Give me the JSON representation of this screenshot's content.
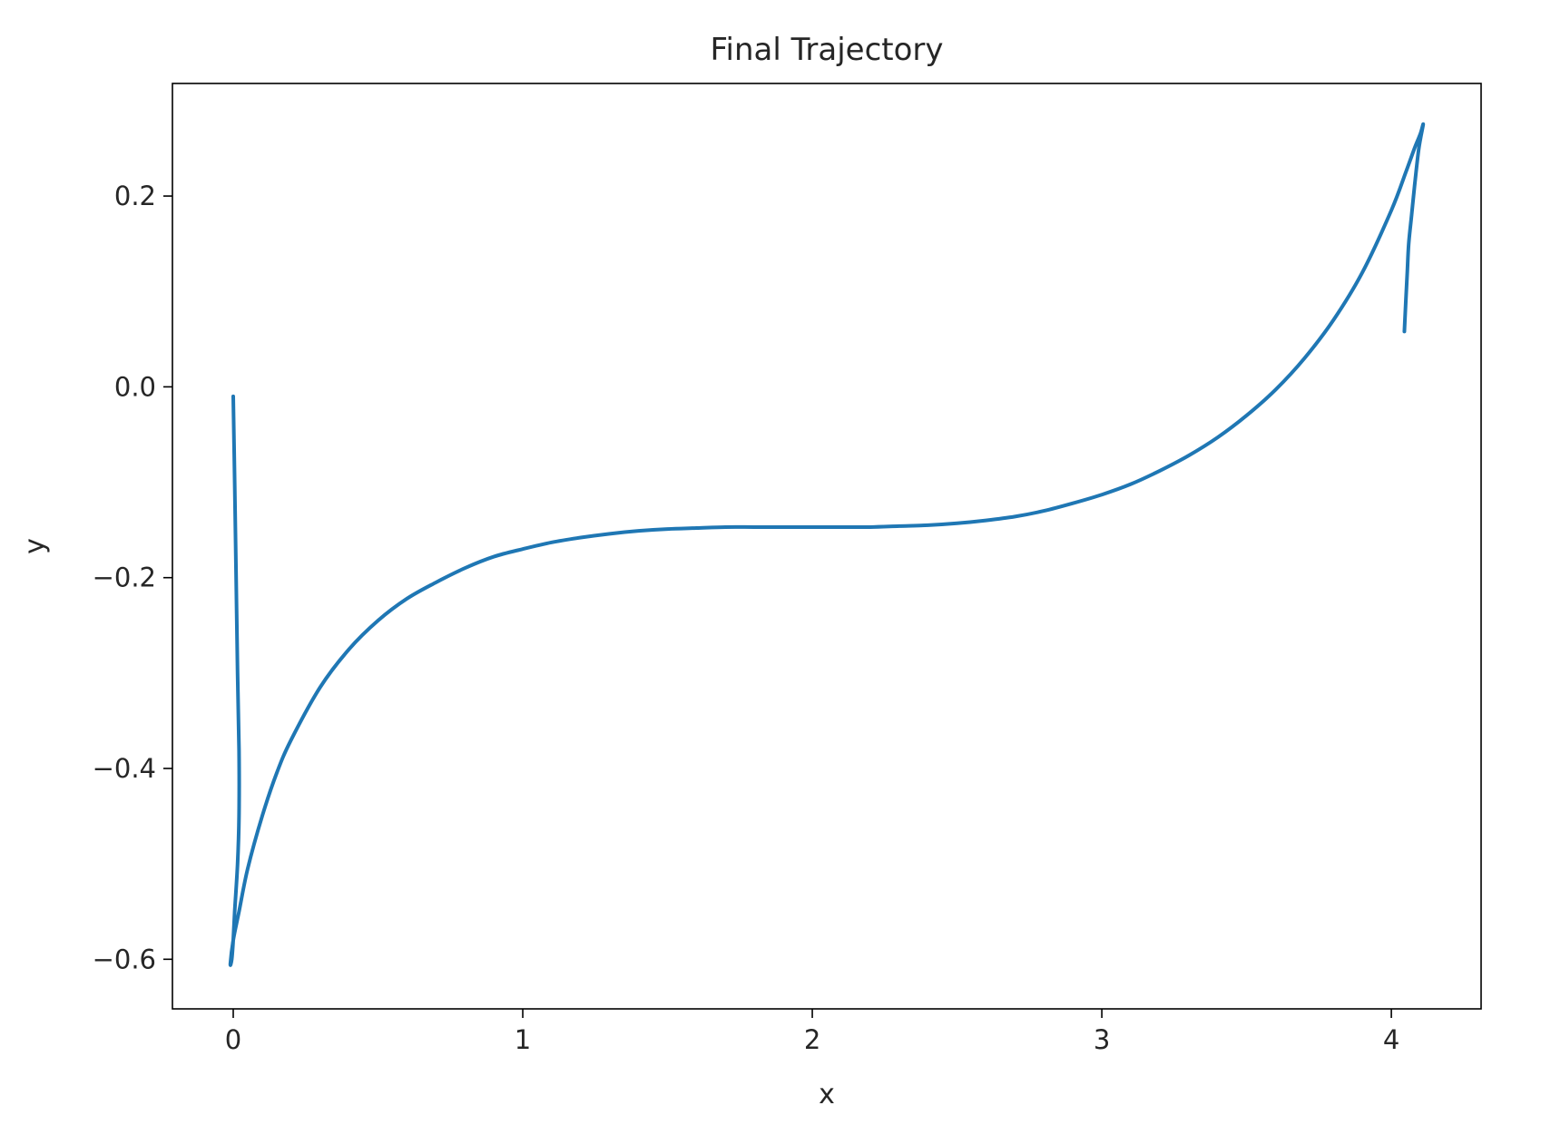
{
  "chart_data": {
    "type": "line",
    "title": "Final Trajectory",
    "xlabel": "x",
    "ylabel": "y",
    "xlim": [
      -0.21,
      4.31
    ],
    "ylim": [
      -0.652,
      0.318
    ],
    "grid": false,
    "x_ticks": [
      {
        "value": 0,
        "label": "0"
      },
      {
        "value": 1,
        "label": "1"
      },
      {
        "value": 2,
        "label": "2"
      },
      {
        "value": 3,
        "label": "3"
      },
      {
        "value": 4,
        "label": "4"
      }
    ],
    "y_ticks": [
      {
        "value": 0.2,
        "label": "0.2"
      },
      {
        "value": 0.0,
        "label": "0.0"
      },
      {
        "value": -0.2,
        "label": "−0.2"
      },
      {
        "value": -0.4,
        "label": "−0.4"
      },
      {
        "value": -0.6,
        "label": "−0.6"
      }
    ],
    "series": [
      {
        "color": "#1f77b4",
        "x": [
          0.0,
          0.005,
          0.01,
          0.015,
          0.02,
          0.02,
          0.015,
          0.005,
          0.0,
          -0.005,
          -0.01,
          0.0,
          0.02,
          0.05,
          0.1,
          0.15,
          0.2,
          0.3,
          0.4,
          0.5,
          0.6,
          0.7,
          0.8,
          0.9,
          1.0,
          1.1,
          1.2,
          1.3,
          1.4,
          1.5,
          1.6,
          1.7,
          1.8,
          1.9,
          2.0,
          2.1,
          2.2,
          2.3,
          2.4,
          2.5,
          2.6,
          2.7,
          2.8,
          2.9,
          3.0,
          3.1,
          3.2,
          3.3,
          3.4,
          3.5,
          3.6,
          3.7,
          3.8,
          3.9,
          4.0,
          4.05,
          4.08,
          4.1,
          4.11,
          4.095,
          4.08,
          4.07,
          4.06,
          4.055,
          4.05,
          4.045
        ],
        "y": [
          -0.01,
          -0.1,
          -0.2,
          -0.3,
          -0.38,
          -0.45,
          -0.5,
          -0.55,
          -0.58,
          -0.6,
          -0.605,
          -0.58,
          -0.55,
          -0.505,
          -0.45,
          -0.405,
          -0.37,
          -0.315,
          -0.275,
          -0.245,
          -0.222,
          -0.205,
          -0.19,
          -0.178,
          -0.17,
          -0.163,
          -0.158,
          -0.154,
          -0.151,
          -0.149,
          -0.148,
          -0.147,
          -0.147,
          -0.147,
          -0.147,
          -0.147,
          -0.147,
          -0.146,
          -0.145,
          -0.143,
          -0.14,
          -0.136,
          -0.13,
          -0.122,
          -0.113,
          -0.102,
          -0.088,
          -0.072,
          -0.053,
          -0.03,
          -0.003,
          0.03,
          0.07,
          0.12,
          0.185,
          0.225,
          0.25,
          0.265,
          0.275,
          0.25,
          0.21,
          0.18,
          0.15,
          0.12,
          0.09,
          0.058
        ]
      }
    ]
  }
}
